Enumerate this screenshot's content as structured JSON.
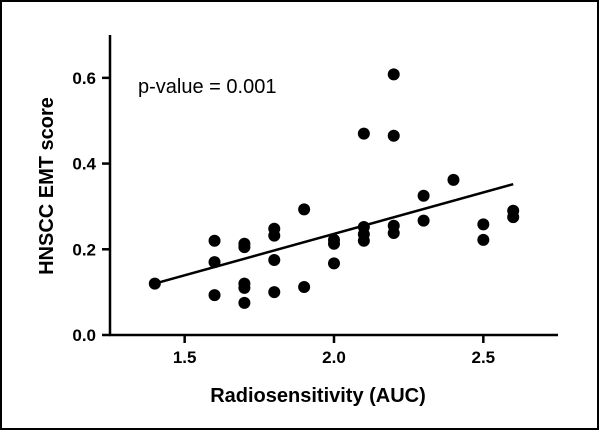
{
  "chart_data": {
    "type": "scatter",
    "title": "",
    "xlabel": "Radiosensitivity (AUC)",
    "ylabel": "HNSCC EMT score",
    "xlim": [
      1.25,
      2.75
    ],
    "ylim": [
      0.0,
      0.7
    ],
    "xticks": [
      1.5,
      2.0,
      2.5
    ],
    "yticks": [
      0.0,
      0.2,
      0.4,
      0.6
    ],
    "xtick_labels": [
      "1.5",
      "2.0",
      "2.5"
    ],
    "ytick_labels": [
      "0.0",
      "0.2",
      "0.4",
      "0.6"
    ],
    "annotation": "p-value = 0.001",
    "grid": false,
    "marker_color": "#000000",
    "trendline": {
      "x": [
        1.4,
        2.6
      ],
      "y": [
        0.12,
        0.352
      ]
    },
    "points": [
      {
        "x": 1.4,
        "y": 0.12
      },
      {
        "x": 1.6,
        "y": 0.22
      },
      {
        "x": 1.6,
        "y": 0.17
      },
      {
        "x": 1.6,
        "y": 0.093
      },
      {
        "x": 1.7,
        "y": 0.213
      },
      {
        "x": 1.7,
        "y": 0.205
      },
      {
        "x": 1.7,
        "y": 0.12
      },
      {
        "x": 1.7,
        "y": 0.11
      },
      {
        "x": 1.7,
        "y": 0.075
      },
      {
        "x": 1.8,
        "y": 0.248
      },
      {
        "x": 1.8,
        "y": 0.232
      },
      {
        "x": 1.8,
        "y": 0.175
      },
      {
        "x": 1.8,
        "y": 0.1
      },
      {
        "x": 1.9,
        "y": 0.293
      },
      {
        "x": 1.9,
        "y": 0.112
      },
      {
        "x": 2.0,
        "y": 0.222
      },
      {
        "x": 2.0,
        "y": 0.213
      },
      {
        "x": 2.0,
        "y": 0.167
      },
      {
        "x": 2.1,
        "y": 0.47
      },
      {
        "x": 2.1,
        "y": 0.252
      },
      {
        "x": 2.1,
        "y": 0.235
      },
      {
        "x": 2.1,
        "y": 0.22
      },
      {
        "x": 2.2,
        "y": 0.608
      },
      {
        "x": 2.2,
        "y": 0.465
      },
      {
        "x": 2.2,
        "y": 0.255
      },
      {
        "x": 2.2,
        "y": 0.238
      },
      {
        "x": 2.3,
        "y": 0.325
      },
      {
        "x": 2.3,
        "y": 0.267
      },
      {
        "x": 2.4,
        "y": 0.362
      },
      {
        "x": 2.5,
        "y": 0.258
      },
      {
        "x": 2.5,
        "y": 0.222
      },
      {
        "x": 2.6,
        "y": 0.29
      },
      {
        "x": 2.6,
        "y": 0.275
      }
    ]
  }
}
